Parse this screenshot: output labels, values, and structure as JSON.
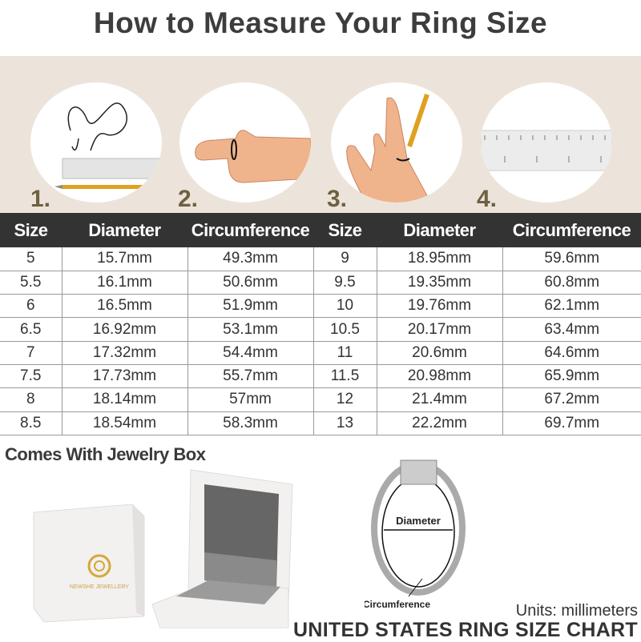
{
  "title": "How to Measure Your Ring Size",
  "steps": [
    "1.",
    "2.",
    "3.",
    "4."
  ],
  "table": {
    "headers": [
      "Size",
      "Diameter",
      "Circumference",
      "Size",
      "Diameter",
      "Circumference"
    ],
    "rows": [
      [
        "5",
        "15.7mm",
        "49.3mm",
        "9",
        "18.95mm",
        "59.6mm"
      ],
      [
        "5.5",
        "16.1mm",
        "50.6mm",
        "9.5",
        "19.35mm",
        "60.8mm"
      ],
      [
        "6",
        "16.5mm",
        "51.9mm",
        "10",
        "19.76mm",
        "62.1mm"
      ],
      [
        "6.5",
        "16.92mm",
        "53.1mm",
        "10.5",
        "20.17mm",
        "63.4mm"
      ],
      [
        "7",
        "17.32mm",
        "54.4mm",
        "11",
        "20.6mm",
        "64.6mm"
      ],
      [
        "7.5",
        "17.73mm",
        "55.7mm",
        "11.5",
        "20.98mm",
        "65.9mm"
      ],
      [
        "8",
        "18.14mm",
        "57mm",
        "12",
        "21.4mm",
        "67.2mm"
      ],
      [
        "8.5",
        "18.54mm",
        "58.3mm",
        "13",
        "22.2mm",
        "69.7mm"
      ]
    ]
  },
  "box_heading": "Comes With Jewelry Box",
  "box_brand": "NEWSHE JEWELLERY",
  "ring_labels": {
    "diameter": "Diameter",
    "circumference": "Circumference"
  },
  "units": "Units: millimeters",
  "chart_title": "UNITED STATES RING SIZE CHART",
  "colors": {
    "band": "#ece4da",
    "header": "#333333",
    "step_number": "#6e6141",
    "gold": "#d4a93a"
  }
}
